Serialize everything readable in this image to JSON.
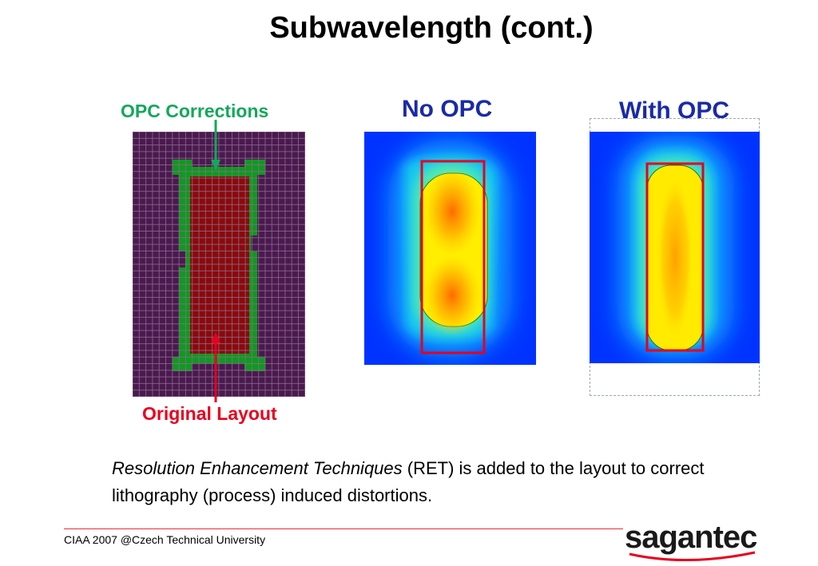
{
  "slide": {
    "title": "Subwavelength (cont.)",
    "labels": {
      "opc_corrections": "OPC Corrections",
      "original_layout": "Original Layout",
      "no_opc": "No OPC",
      "with_opc": "With OPC"
    },
    "description": {
      "italic_part": "Resolution Enhancement Techniques",
      "rest": " (RET) is added to the layout to correct lithography (process) induced distortions."
    },
    "footer": "CIAA 2007 @Czech Technical University",
    "logo_text": "sagantec"
  },
  "colors": {
    "opc_green": "#13a85b",
    "original_red": "#e8001c",
    "heading_blue": "#1a2aa8",
    "grid_background": "#4a1a4e",
    "layout_fill": "#8b0a0a",
    "opc_fill": "#0e9a1e"
  }
}
